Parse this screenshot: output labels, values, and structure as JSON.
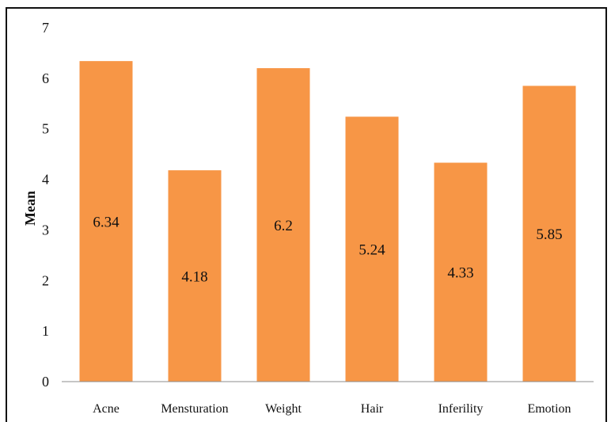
{
  "chart_data": {
    "type": "bar",
    "title": "",
    "xlabel": "",
    "ylabel": "Mean",
    "ylim": [
      0,
      7
    ],
    "yticks": [
      "0",
      "1",
      "2",
      "3",
      "4",
      "5",
      "6",
      "7"
    ],
    "categories": [
      "Acne",
      "Mensturation",
      "Weight",
      "Hair",
      "Inferility",
      "Emotion"
    ],
    "values": [
      6.34,
      4.18,
      6.2,
      5.24,
      4.33,
      5.85
    ],
    "data_labels": [
      "6.34",
      "4.18",
      "6.2",
      "5.24",
      "4.33",
      "5.85"
    ],
    "bar_color": "#F79646",
    "grid": false,
    "legend": "none"
  }
}
